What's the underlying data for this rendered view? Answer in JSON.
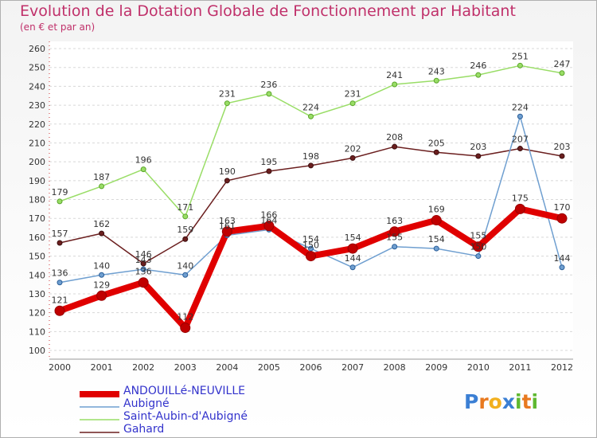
{
  "title": "Evolution de la Dotation Globale de Fonctionnement par Habitant",
  "subtitle": "(en € et par an)",
  "brand": {
    "name": "Proxiti",
    "letters": [
      {
        "ch": "P",
        "color": "#3b7fd4"
      },
      {
        "ch": "r",
        "color": "#e8791f"
      },
      {
        "ch": "o",
        "color": "#f2b01e"
      },
      {
        "ch": "x",
        "color": "#3b7fd4"
      },
      {
        "ch": "i",
        "color": "#5fb830"
      },
      {
        "ch": "t",
        "color": "#e8791f"
      },
      {
        "ch": "i",
        "color": "#5fb830"
      }
    ]
  },
  "chart_data": {
    "type": "line",
    "title": "Evolution de la Dotation Globale de Fonctionnement par Habitant",
    "ylabel": "(en € et par an)",
    "xlabel": "",
    "x": [
      "2000",
      "2001",
      "2002",
      "2003",
      "2004",
      "2005",
      "2006",
      "2007",
      "2008",
      "2009",
      "2010",
      "2011",
      "2012"
    ],
    "ylim": [
      100,
      260
    ],
    "yticks": [
      "100",
      "110",
      "120",
      "130",
      "140",
      "150",
      "160",
      "170",
      "180",
      "190",
      "200",
      "210",
      "220",
      "230",
      "240",
      "250",
      "260"
    ],
    "grid": "horizontal dashed",
    "legend_position": "bottom-left",
    "series": [
      {
        "name": "ANDOUILLé-NEUVILLE",
        "color": "#e00000",
        "values": [
          121,
          129,
          136,
          112,
          163,
          166,
          150,
          154,
          163,
          169,
          155,
          175,
          170
        ]
      },
      {
        "name": "Aubigné",
        "color": "#6f9fd0",
        "values": [
          136,
          140,
          143,
          140,
          161,
          164,
          154,
          144,
          155,
          154,
          150,
          224,
          144
        ]
      },
      {
        "name": "Saint-Aubin-d'Aubigné",
        "color": "#99dd66",
        "values": [
          179,
          187,
          196,
          171,
          231,
          236,
          224,
          231,
          241,
          243,
          246,
          251,
          247
        ]
      },
      {
        "name": "Gahard",
        "color": "#6b1f1f",
        "values": [
          157,
          162,
          146,
          159,
          190,
          195,
          198,
          202,
          208,
          205,
          203,
          207,
          203
        ]
      }
    ],
    "data_labels": [
      [
        "121",
        "129",
        "136",
        "112",
        "163",
        "166",
        "150",
        "154",
        "163",
        "169",
        "155",
        "175",
        "170"
      ],
      [
        "136",
        "140",
        "143",
        "140",
        "161",
        "164",
        "154",
        "144",
        "155",
        "154",
        "150",
        "224",
        "144"
      ],
      [
        "179",
        "187",
        "196",
        "171",
        "231",
        "236",
        "224",
        "231",
        "241",
        "243",
        "246",
        "251",
        "247"
      ],
      [
        "157",
        "162",
        "146",
        "159",
        "190",
        "195",
        "198",
        "202",
        "208",
        "205",
        "203",
        "207",
        "203"
      ]
    ]
  }
}
